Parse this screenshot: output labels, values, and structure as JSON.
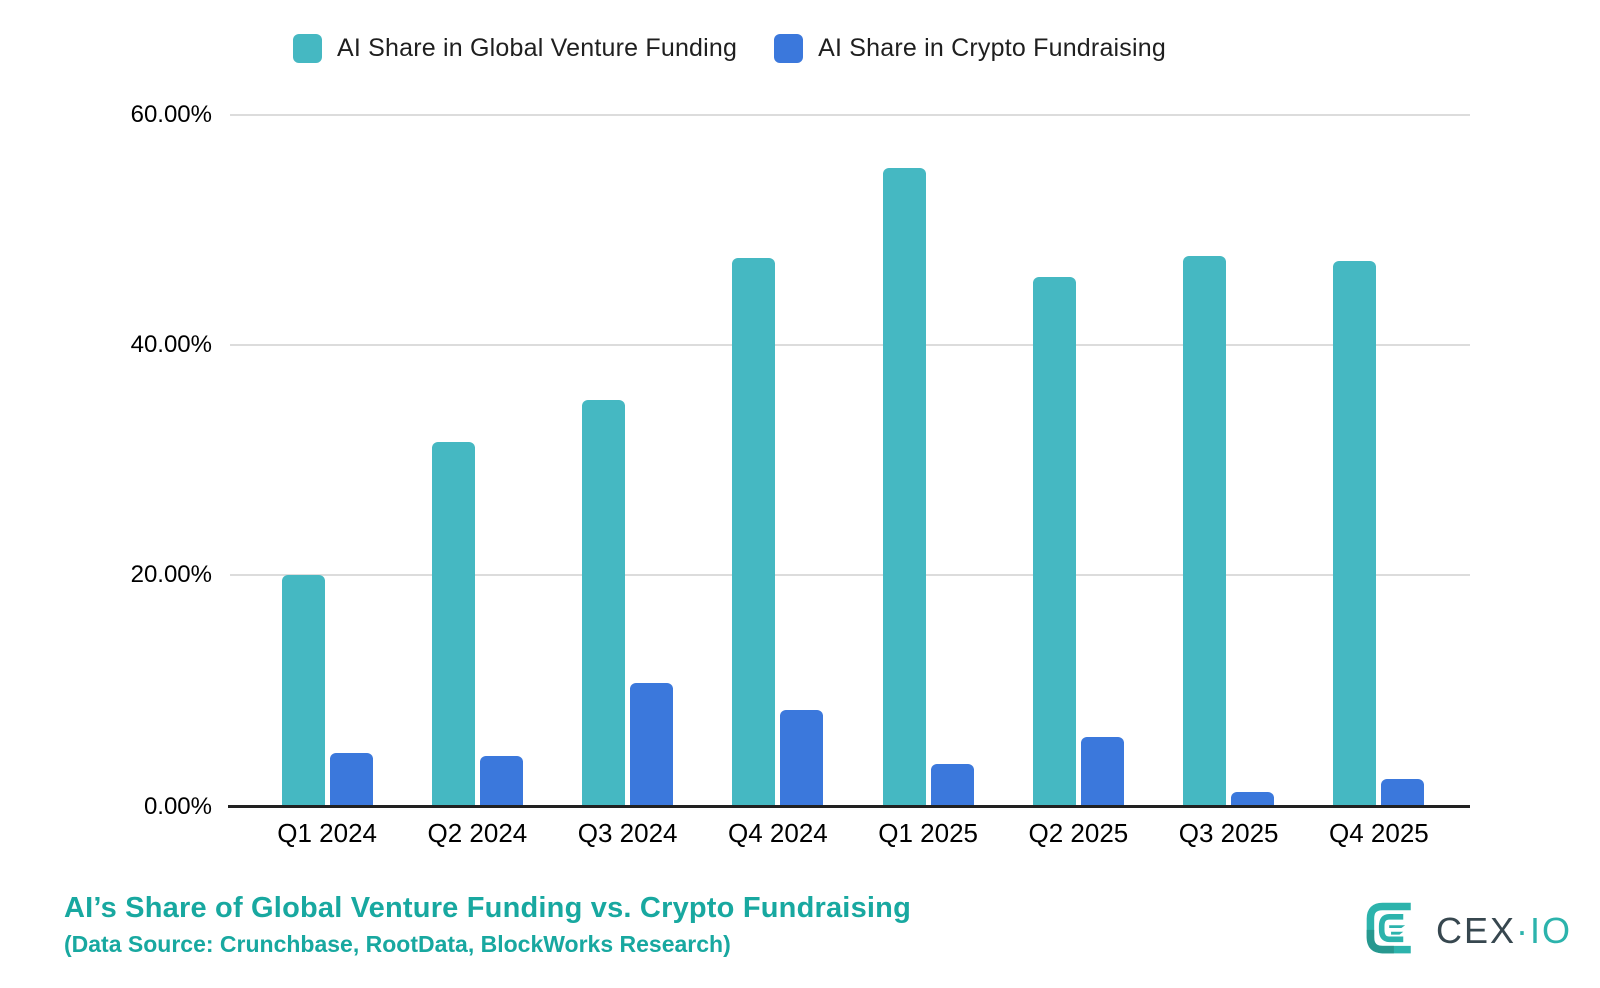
{
  "legend": {
    "items": [
      {
        "label": "AI Share in Global Venture Funding",
        "color": "#45b8c2"
      },
      {
        "label": "AI Share in Crypto Fundraising",
        "color": "#3b78dc"
      }
    ]
  },
  "chart_data": {
    "type": "bar",
    "title": "AI’s Share of Global Venture Funding vs. Crypto Fundraising",
    "subtitle": "(Data Source: Crunchbase, RootData, BlockWorks Research)",
    "categories": [
      "Q1 2024",
      "Q2 2024",
      "Q3 2024",
      "Q4 2024",
      "Q1 2025",
      "Q2 2025",
      "Q3 2025",
      "Q4 2025"
    ],
    "series": [
      {
        "name": "AI Share in Global Venture Funding",
        "color": "#45b8c2",
        "values": [
          20.0,
          31.6,
          35.2,
          47.6,
          55.4,
          45.9,
          47.7,
          47.3
        ]
      },
      {
        "name": "AI Share in Crypto Fundraising",
        "color": "#3b78dc",
        "values": [
          4.5,
          4.3,
          10.6,
          8.3,
          3.6,
          5.9,
          1.1,
          2.3
        ]
      }
    ],
    "ylabel": "",
    "xlabel": "",
    "ylim": [
      0,
      60
    ],
    "yticks": [
      {
        "label": "60.00%",
        "value": 60
      },
      {
        "label": "40.00%",
        "value": 40
      },
      {
        "label": "20.00%",
        "value": 20
      },
      {
        "label": "0.00%",
        "value": 0
      }
    ],
    "grid": true,
    "legend_position": "top"
  },
  "logo": {
    "cex": "CEX",
    "dot": "·",
    "io": "IO",
    "teal": "#2cb3ac",
    "dark": "#37474f"
  }
}
